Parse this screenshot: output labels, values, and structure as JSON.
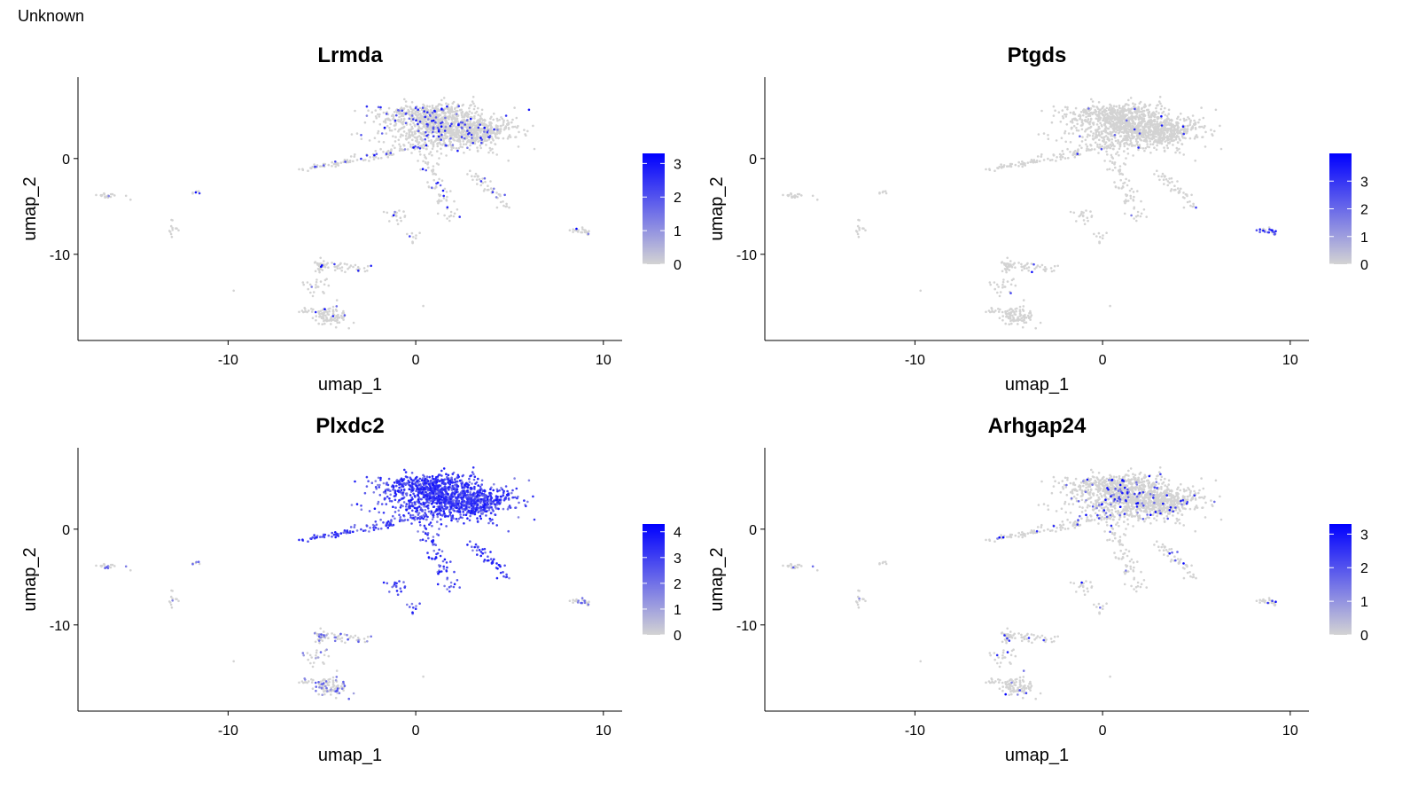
{
  "header": "Unknown",
  "colors": {
    "low": "#d3d3d3",
    "high": "#0000ff",
    "axis": "#000000"
  },
  "chart_data": [
    {
      "type": "scatter",
      "title": "Lrmda",
      "xlabel": "umap_1",
      "ylabel": "umap_2",
      "xlim": [
        -18,
        11
      ],
      "ylim": [
        -19,
        8.5
      ],
      "xticks": [
        "-10",
        "0",
        "10"
      ],
      "yticks": [
        "0",
        "-10"
      ],
      "colorbar": {
        "min": 0,
        "max": 3.3,
        "ticks": [
          "3",
          "2",
          "1",
          "0"
        ]
      },
      "expression_pattern": "sparse"
    },
    {
      "type": "scatter",
      "title": "Ptgds",
      "xlabel": "umap_1",
      "ylabel": "umap_2",
      "xlim": [
        -18,
        11
      ],
      "ylim": [
        -19,
        8.5
      ],
      "xticks": [
        "-10",
        "0",
        "10"
      ],
      "yticks": [
        "0",
        "-10"
      ],
      "colorbar": {
        "min": 0,
        "max": 4.0,
        "ticks": [
          "3",
          "2",
          "1",
          "0"
        ]
      },
      "expression_pattern": "rare"
    },
    {
      "type": "scatter",
      "title": "Plxdc2",
      "xlabel": "umap_1",
      "ylabel": "umap_2",
      "xlim": [
        -18,
        11
      ],
      "ylim": [
        -19,
        8.5
      ],
      "xticks": [
        "-10",
        "0",
        "10"
      ],
      "yticks": [
        "0",
        "-10"
      ],
      "colorbar": {
        "min": 0,
        "max": 4.3,
        "ticks": [
          "4",
          "3",
          "2",
          "1",
          "0"
        ]
      },
      "expression_pattern": "broad"
    },
    {
      "type": "scatter",
      "title": "Arhgap24",
      "xlabel": "umap_1",
      "ylabel": "umap_2",
      "xlim": [
        -18,
        11
      ],
      "ylim": [
        -19,
        8.5
      ],
      "xticks": [
        "-10",
        "0",
        "10"
      ],
      "yticks": [
        "0",
        "-10"
      ],
      "colorbar": {
        "min": 0,
        "max": 3.3,
        "ticks": [
          "3",
          "2",
          "1",
          "0"
        ]
      },
      "expression_pattern": "sparse"
    }
  ]
}
